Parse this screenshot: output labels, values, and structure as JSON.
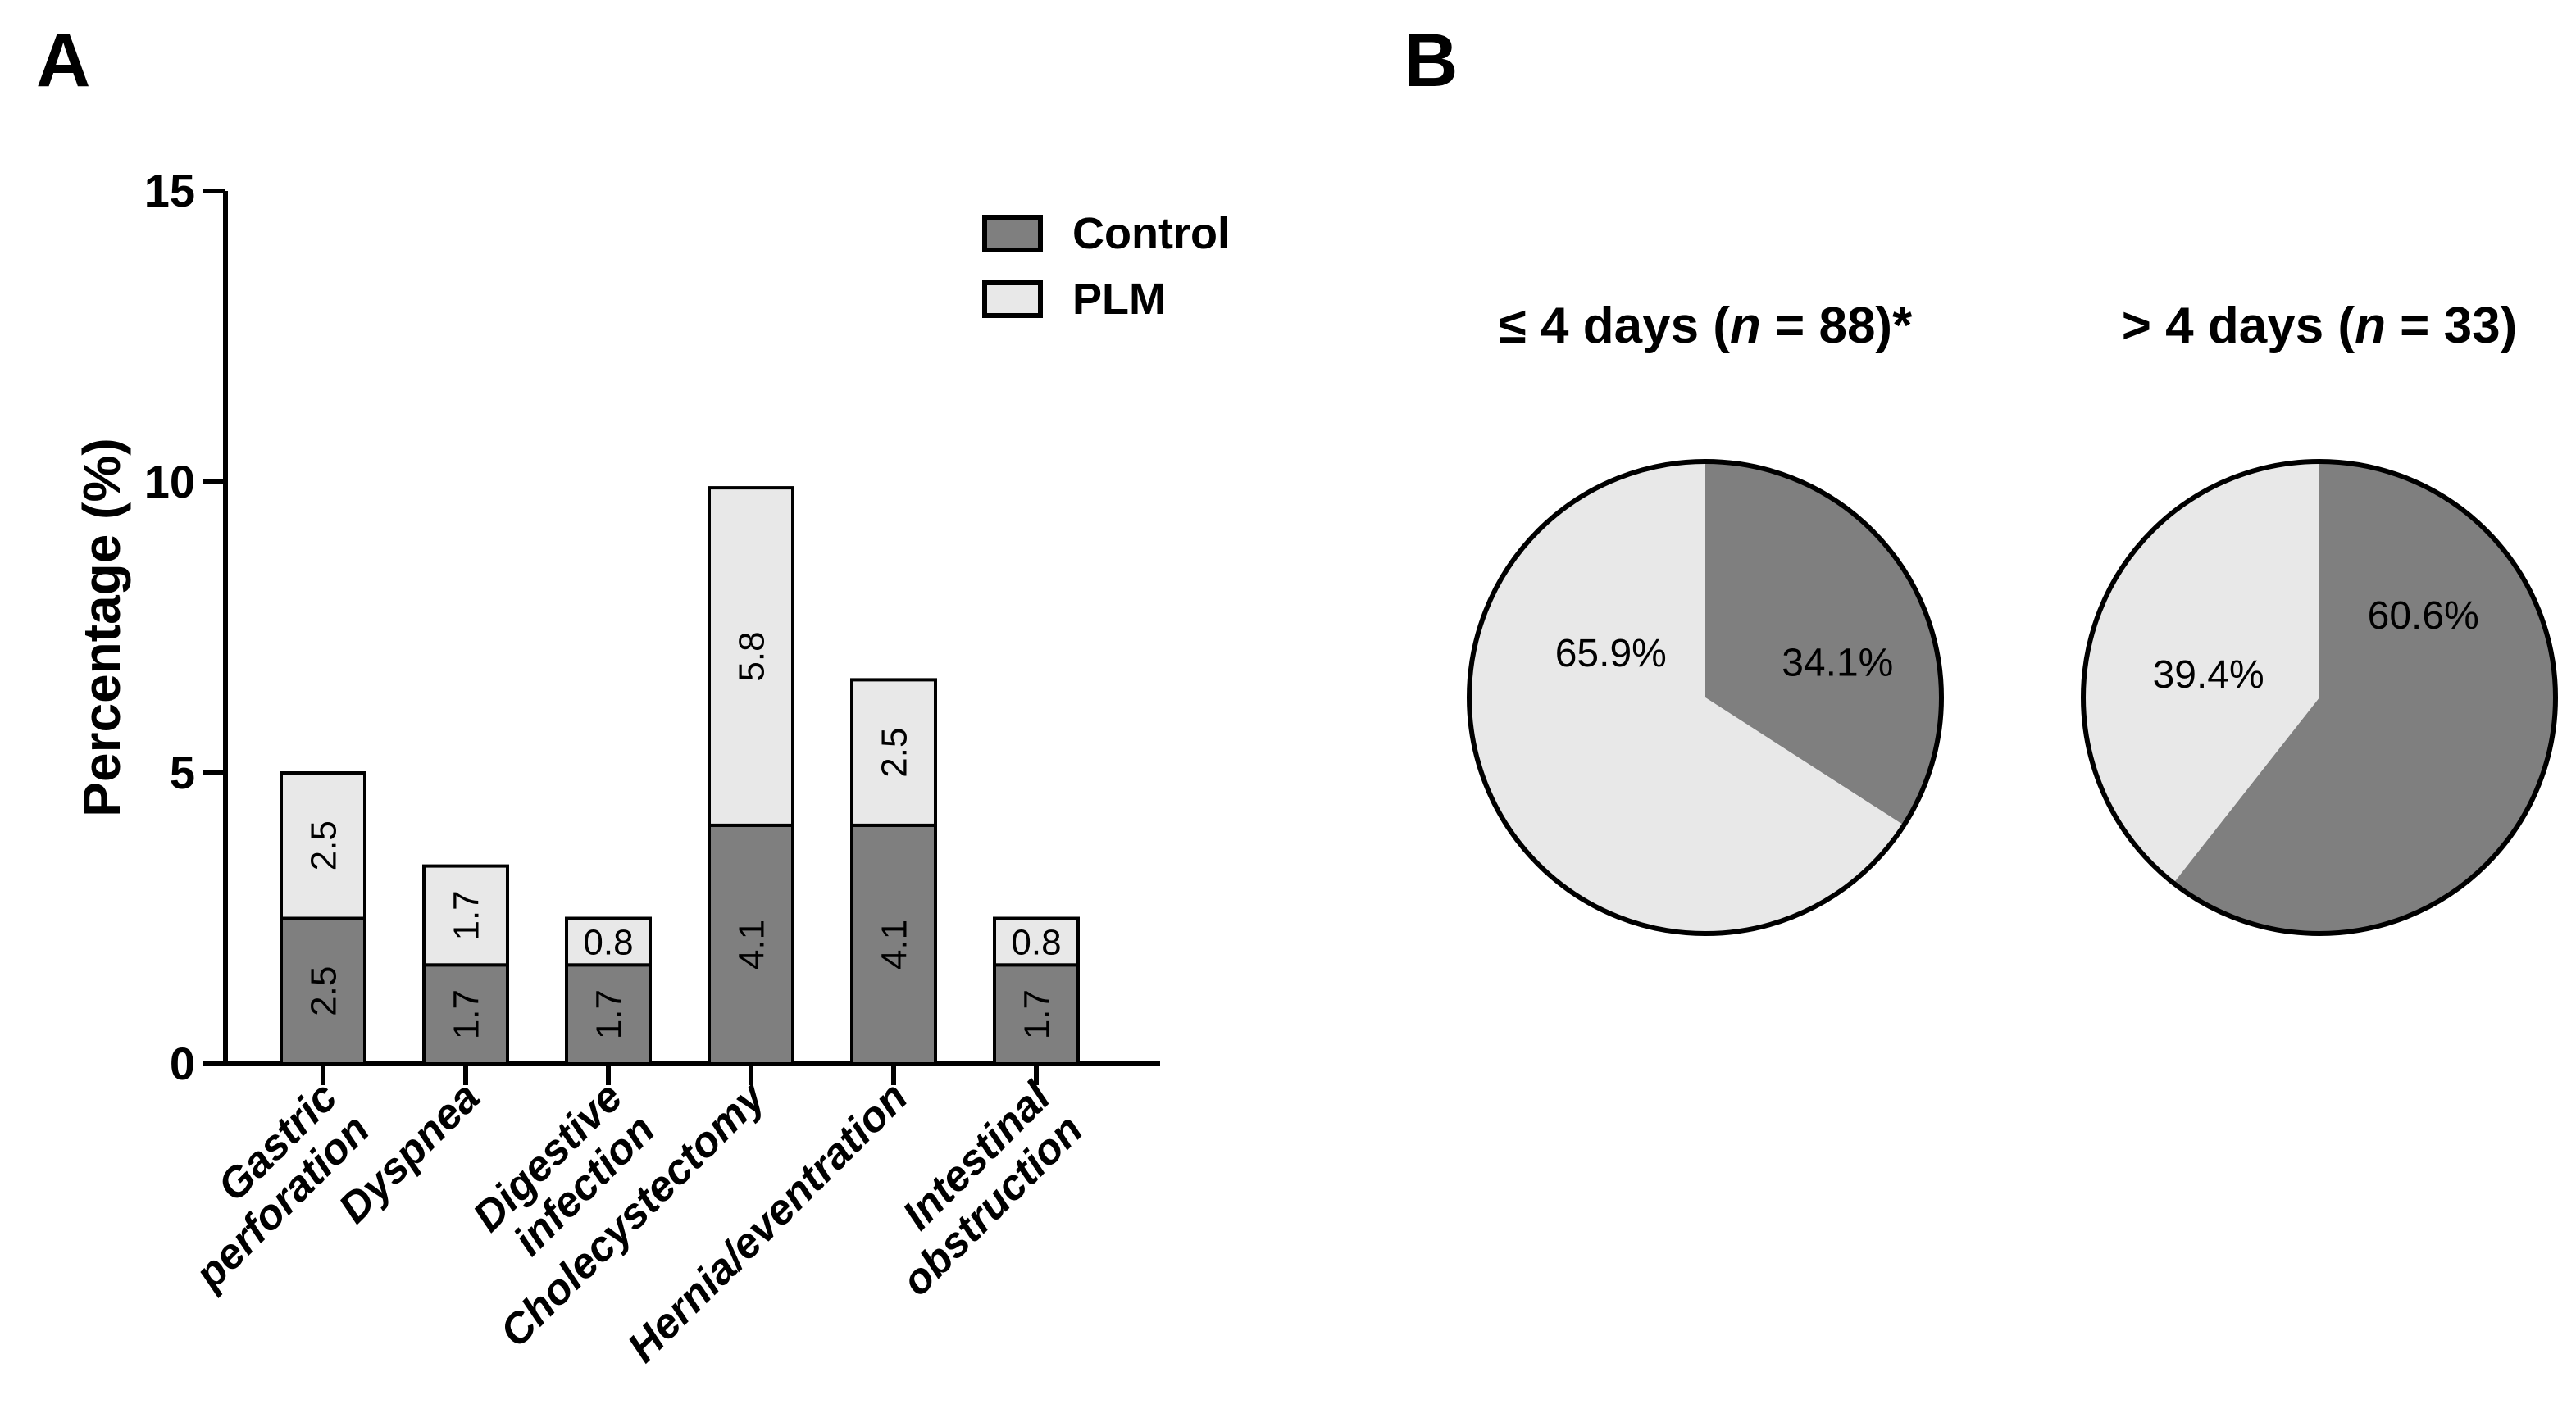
{
  "panel_a": {
    "label": "A"
  },
  "panel_b": {
    "label": "B"
  },
  "colors": {
    "control": "#7f7f7f",
    "plm": "#e8e8e8",
    "stroke": "#000000",
    "background": "#ffffff"
  },
  "chart_data": [
    {
      "type": "bar",
      "stacked": true,
      "title": "",
      "xlabel": "",
      "ylabel": "Percentage (%)",
      "ylim": [
        0,
        15
      ],
      "yticks": [
        0,
        5,
        10,
        15
      ],
      "grid": false,
      "legend_position": "top-right",
      "categories": [
        "Gastric perforation",
        "Dyspnea",
        "Digestive infection",
        "Cholecystectomy",
        "Hernia/eventration",
        "Intestinal obstruction"
      ],
      "category_lines": [
        [
          "Gastric",
          "perforation"
        ],
        [
          "Dyspnea"
        ],
        [
          "Digestive",
          "infection"
        ],
        [
          "Cholecystectomy"
        ],
        [
          "Hernia/eventration"
        ],
        [
          "Intestinal",
          "obstruction"
        ]
      ],
      "series": [
        {
          "name": "Control",
          "color": "#7f7f7f",
          "values": [
            2.5,
            1.7,
            1.7,
            4.1,
            4.1,
            1.7
          ]
        },
        {
          "name": "PLM",
          "color": "#e8e8e8",
          "values": [
            2.5,
            1.7,
            0.8,
            5.8,
            2.5,
            0.8
          ]
        }
      ],
      "bar_labels": [
        [
          "2.5",
          "1.7",
          "1.7",
          "4.1",
          "4.1",
          "1.7"
        ],
        [
          "2.5",
          "1.7",
          "0.8",
          "5.8",
          "2.5",
          "0.8"
        ]
      ]
    },
    {
      "type": "pie",
      "title": "≤ 4 days (n = 88)*",
      "title_parts": {
        "pre": "≤ 4 days (",
        "n": "n",
        "post": " = 88)*"
      },
      "start_angle_deg": 0,
      "direction": "clockwise",
      "slices": [
        {
          "name": "Control",
          "value": 34.1,
          "label": "34.1%",
          "color": "#7f7f7f",
          "label_pos": [
            0.56,
            -0.15
          ]
        },
        {
          "name": "PLM",
          "value": 65.9,
          "label": "65.9%",
          "color": "#e8e8e8",
          "label_pos": [
            -0.4,
            -0.19
          ]
        }
      ]
    },
    {
      "type": "pie",
      "title": "> 4 days (n = 33)",
      "title_parts": {
        "pre": "> 4 days (",
        "n": "n",
        "post": " = 33)"
      },
      "start_angle_deg": 0,
      "direction": "clockwise",
      "slices": [
        {
          "name": "Control",
          "value": 60.6,
          "label": "60.6%",
          "color": "#7f7f7f",
          "label_pos": [
            0.44,
            -0.35
          ]
        },
        {
          "name": "PLM",
          "value": 39.4,
          "label": "39.4%",
          "color": "#e8e8e8",
          "label_pos": [
            -0.47,
            -0.1
          ]
        }
      ]
    }
  ]
}
